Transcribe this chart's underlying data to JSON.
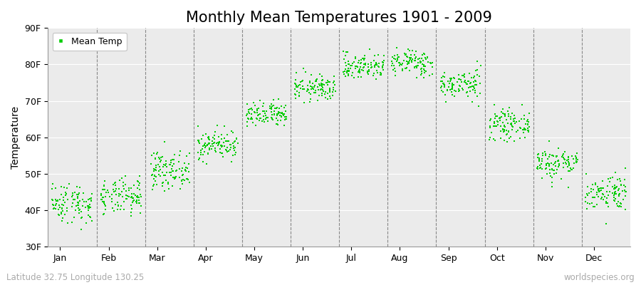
{
  "title": "Monthly Mean Temperatures 1901 - 2009",
  "ylabel": "Temperature",
  "footer_left": "Latitude 32.75 Longitude 130.25",
  "footer_right": "worldspecies.org",
  "legend_label": "Mean Temp",
  "dot_color": "#00CC00",
  "background_color": "#FFFFFF",
  "plot_bg_color": "#EBEBEB",
  "ylim": [
    30,
    90
  ],
  "ytick_labels": [
    "30F",
    "40F",
    "50F",
    "60F",
    "70F",
    "80F",
    "90F"
  ],
  "ytick_values": [
    30,
    40,
    50,
    60,
    70,
    80,
    90
  ],
  "month_labels": [
    "Jan",
    "Feb",
    "Mar",
    "Apr",
    "May",
    "Jun",
    "Jul",
    "Aug",
    "Sep",
    "Oct",
    "Nov",
    "Dec"
  ],
  "monthly_means_F": [
    42.0,
    43.5,
    51.0,
    58.0,
    66.0,
    73.5,
    79.5,
    80.5,
    74.5,
    63.5,
    53.0,
    45.0
  ],
  "monthly_stds_F": [
    2.8,
    2.5,
    2.5,
    2.0,
    1.8,
    1.8,
    1.8,
    1.8,
    2.0,
    2.0,
    2.2,
    2.5
  ],
  "years": 109,
  "title_fontsize": 15,
  "axis_fontsize": 10,
  "tick_fontsize": 9,
  "footer_fontsize": 8.5
}
